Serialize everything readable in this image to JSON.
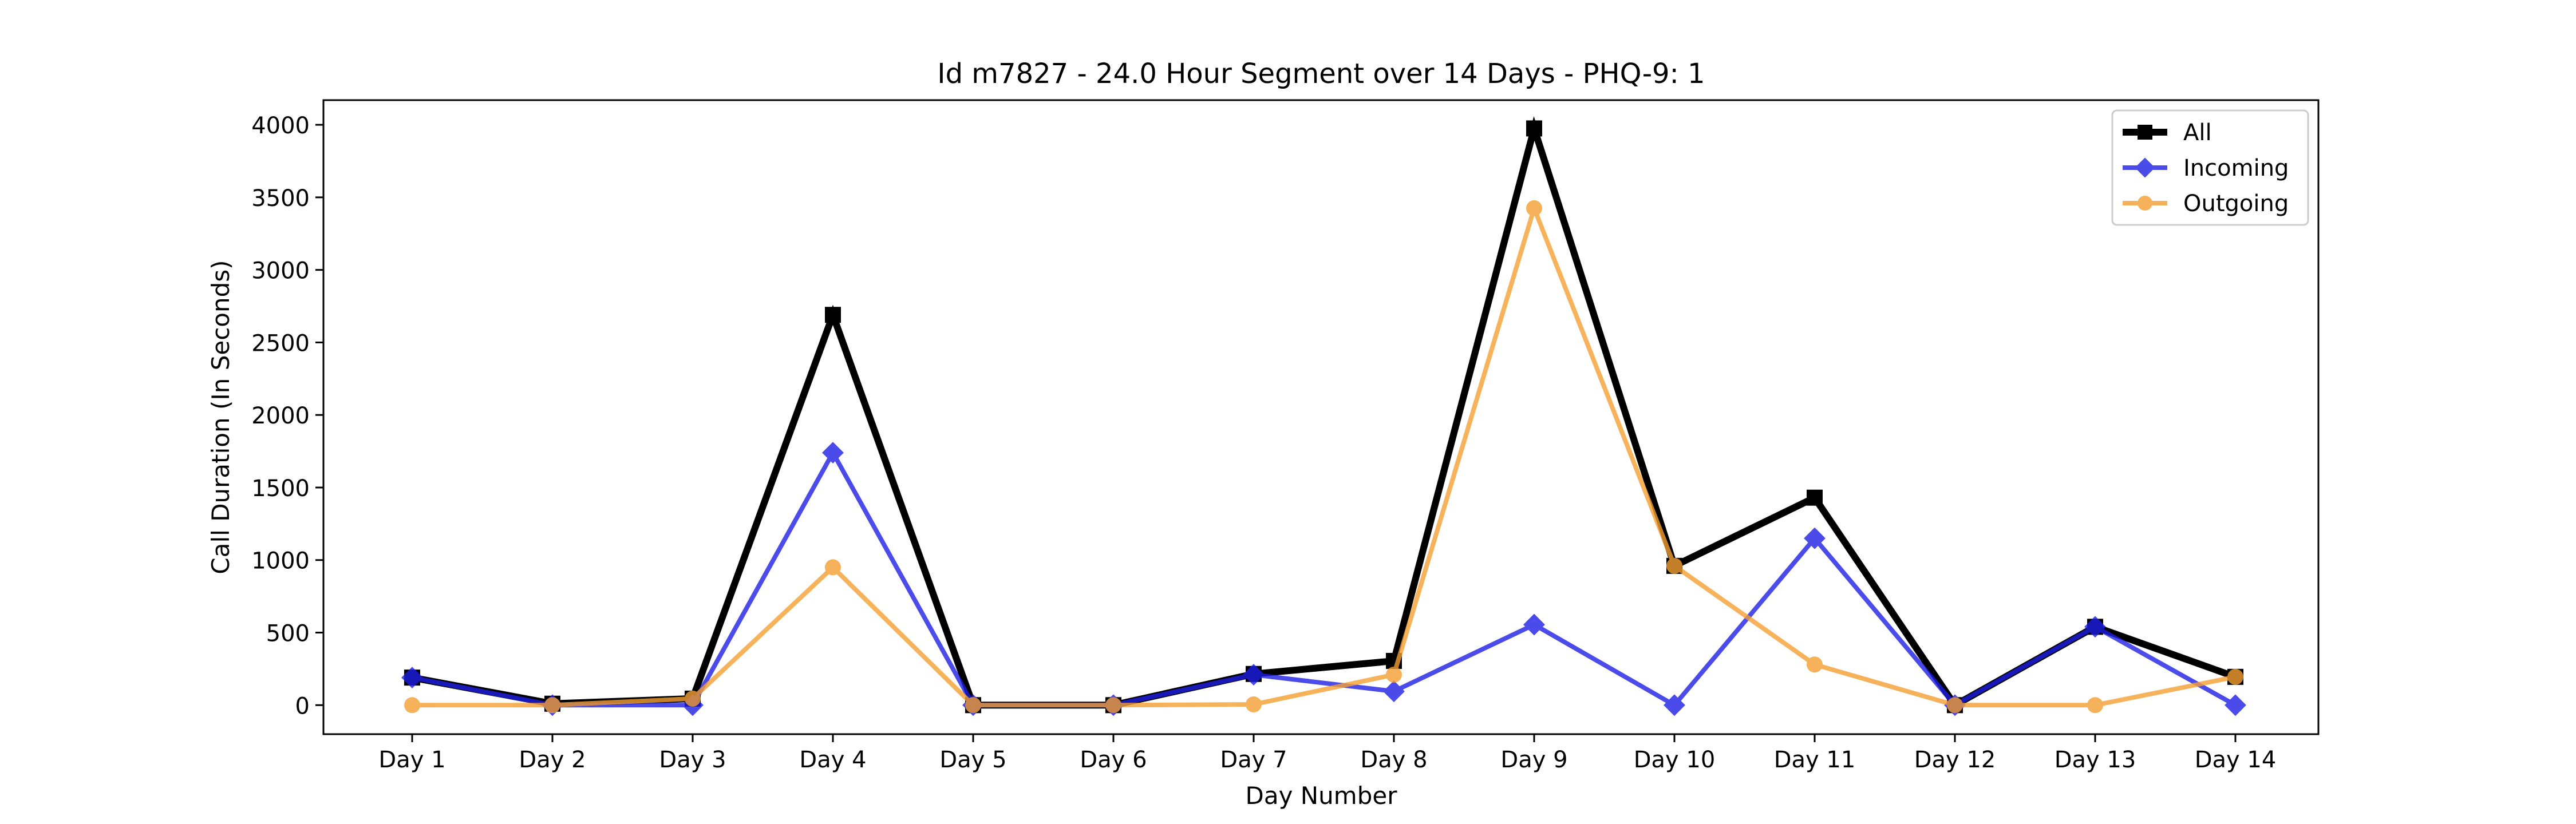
{
  "chart_data": {
    "type": "line",
    "title": "Id m7827 - 24.0 Hour Segment over 14 Days - PHQ-9: 1",
    "xlabel": "Day Number",
    "ylabel": "Call Duration (In Seconds)",
    "categories": [
      "Day 1",
      "Day 2",
      "Day 3",
      "Day 4",
      "Day 5",
      "Day 6",
      "Day 7",
      "Day 8",
      "Day 9",
      "Day 10",
      "Day 11",
      "Day 12",
      "Day 13",
      "Day 14"
    ],
    "ylim": [
      -200,
      4170
    ],
    "yticks": [
      0,
      500,
      1000,
      1500,
      2000,
      2500,
      3000,
      3500,
      4000
    ],
    "grid": false,
    "legend": "top-right",
    "series": [
      {
        "name": "All",
        "color": "#000000",
        "marker": "square",
        "values": [
          190,
          10,
          45,
          2690,
          0,
          0,
          215,
          305,
          3975,
          960,
          1430,
          0,
          540,
          195
        ]
      },
      {
        "name": "Incoming",
        "color": "#1f1fe6",
        "marker": "diamond",
        "values": [
          190,
          0,
          0,
          1740,
          0,
          0,
          210,
          95,
          555,
          0,
          1150,
          0,
          540,
          0
        ]
      },
      {
        "name": "Outgoing",
        "color": "#f5a033",
        "marker": "circle",
        "values": [
          0,
          0,
          45,
          950,
          0,
          0,
          5,
          210,
          3425,
          960,
          280,
          0,
          0,
          195
        ]
      }
    ]
  }
}
